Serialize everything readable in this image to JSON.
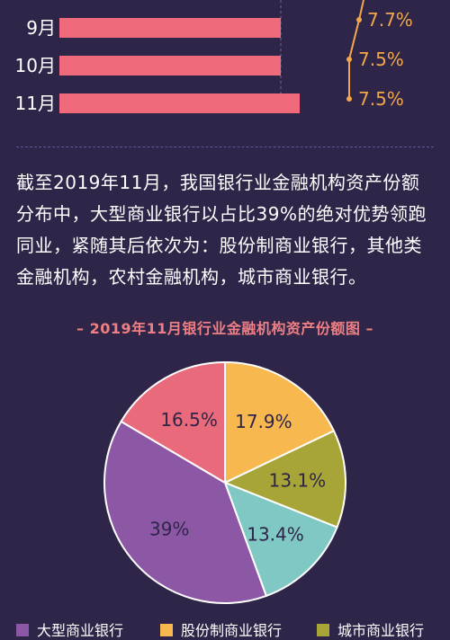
{
  "bar_section": {
    "months": [
      "9月",
      "10月",
      "11月"
    ],
    "line_labels": [
      "7.7%",
      "7.5%",
      "7.5%"
    ]
  },
  "paragraph": "截至2019年11月，我国银行业金融机构资产份额分布中，大型商业银行以占比39%的绝对优势领跑同业，紧随其后依次为：股份制商业银行，其他类金融机构，农村金融机构，城市商业银行。",
  "chart_data": {
    "type": "pie",
    "title": "– 2019年11月银行业金融机构资产份额图 –",
    "slices": [
      {
        "label": "股份制商业银行",
        "value": 17.9,
        "text": "17.9%",
        "color": "#f6b84f"
      },
      {
        "label": "城市商业银行",
        "value": 13.1,
        "text": "13.1%",
        "color": "#a8a538"
      },
      {
        "label": "",
        "value": 13.4,
        "text": "13.4%",
        "color": "#7fc8c4"
      },
      {
        "label": "大型商业银行",
        "value": 39,
        "text": "39%",
        "color": "#8c58a6"
      },
      {
        "label": "",
        "value": 16.5,
        "text": "16.5%",
        "color": "#e86a7b"
      }
    ],
    "legend": [
      "大型商业银行",
      "股份制商业银行",
      "城市商业银行"
    ]
  },
  "colors": {
    "background": "#2e2548",
    "bar": "#ef6b7b",
    "line": "#f1a84a",
    "title": "#ee7f84"
  }
}
